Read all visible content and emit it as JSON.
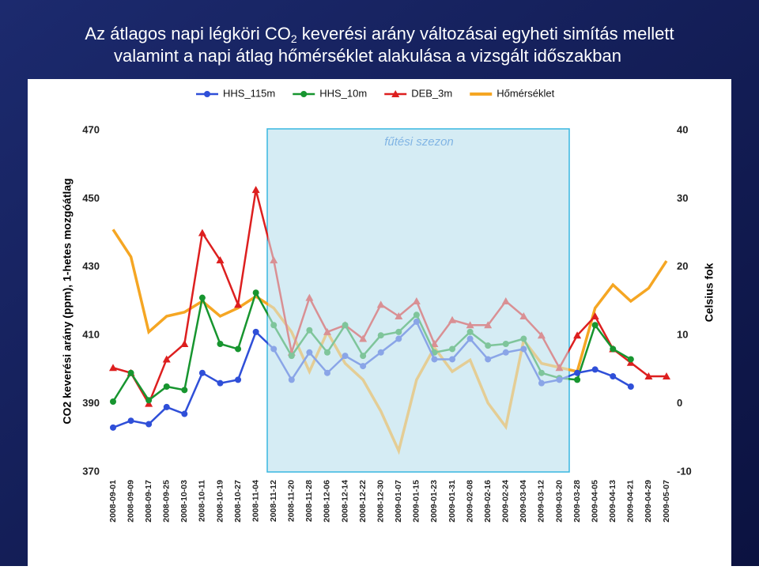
{
  "chart_data": {
    "type": "line",
    "title": [
      "Az átlagos napi légköri CO",
      "2",
      " keverési arány változásai egyheti simítás mellett",
      "valamint a napi átlag hőmérséklet alakulása a vizsgált időszakban"
    ],
    "ylabel": "CO2 keverési arány (ppm), 1-hetes mozgóátlag",
    "y2label": "Celsius fok",
    "annotation": "fűtési szezon",
    "categories": [
      "2008-09-01",
      "2008-09-09",
      "2008-09-17",
      "2008-09-25",
      "2008-10-03",
      "2008-10-11",
      "2008-10-19",
      "2008-10-27",
      "2008-11-04",
      "2008-11-12",
      "2008-11-20",
      "2008-11-28",
      "2008-12-06",
      "2008-12-14",
      "2008-12-22",
      "2008-12-30",
      "2009-01-07",
      "2009-01-15",
      "2009-01-23",
      "2009-01-31",
      "2009-02-08",
      "2009-02-16",
      "2009-02-24",
      "2009-03-04",
      "2009-03-12",
      "2009-03-20",
      "2009-03-28",
      "2009-04-05",
      "2009-04-13",
      "2009-04-21",
      "2009-04-29",
      "2009-05-07"
    ],
    "series": [
      {
        "name": "HHS_115m",
        "color": "#2f4fd8",
        "marker": "circle",
        "values": [
          383,
          385,
          384,
          389,
          387,
          399,
          396,
          397,
          411,
          406,
          397,
          405,
          399,
          404,
          401,
          405,
          409,
          414,
          403,
          403,
          409,
          403,
          405,
          406,
          396,
          397,
          399,
          400,
          398,
          395,
          null,
          null
        ]
      },
      {
        "name": "HHS_10m",
        "color": "#17952f",
        "marker": "circle",
        "values": [
          390.6,
          399,
          391,
          395,
          394,
          421,
          407.5,
          406,
          422.5,
          413,
          404,
          411.5,
          405,
          413,
          404,
          410,
          411,
          416,
          405,
          406,
          411,
          407,
          407.5,
          409,
          399,
          397.5,
          397,
          413,
          406,
          403,
          null,
          null
        ]
      },
      {
        "name": "DEB_3m",
        "color": "#dd1f1f",
        "marker": "triangle",
        "values": [
          400.5,
          399,
          390,
          403,
          407.5,
          440,
          432,
          419,
          452.6,
          432,
          405,
          421,
          411,
          413,
          409,
          419,
          415.6,
          420,
          407.5,
          414.5,
          413,
          413,
          420,
          415.6,
          410,
          400.5,
          410,
          415.6,
          406,
          402,
          398,
          398
        ]
      },
      {
        "name": "Hőmérséklet",
        "color": "#f5a623",
        "marker": "none",
        "axis": "y2",
        "values": [
          25.5,
          21.5,
          10.5,
          12.8,
          13.4,
          15,
          12.8,
          14,
          15.7,
          14,
          10.5,
          4.7,
          10.5,
          5.9,
          3.5,
          -1.1,
          -6.9,
          3.5,
          8.2,
          4.7,
          6.4,
          0.1,
          -3.4,
          9.3,
          5.9,
          5.3,
          4.7,
          14,
          17.4,
          15,
          16.9,
          20.9
        ]
      }
    ],
    "ylim": [
      370,
      470
    ],
    "yticks": [
      370,
      390,
      410,
      430,
      450,
      470
    ],
    "y2lim": [
      -10,
      40
    ],
    "y2ticks": [
      -10,
      0,
      10,
      20,
      30,
      40
    ]
  }
}
